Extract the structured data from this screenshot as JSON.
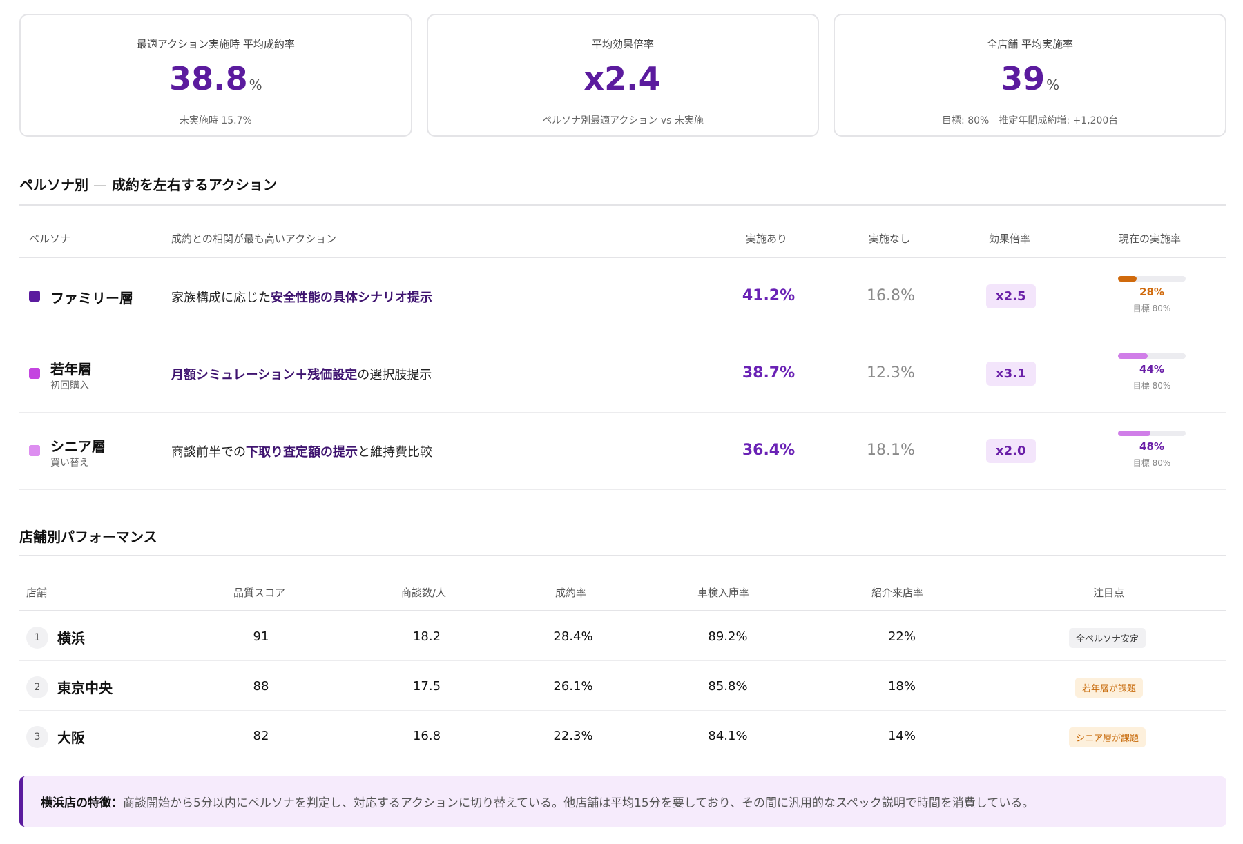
{
  "kpis": [
    {
      "label": "最適アクション実施時 平均成約率",
      "value": "38.8",
      "unit": "%",
      "sub": "未実施時 15.7%"
    },
    {
      "label": "平均効果倍率",
      "value": "x2.4",
      "unit": "",
      "sub": "ペルソナ別最適アクション vs 未実施"
    },
    {
      "label": "全店舗 平均実施率",
      "value": "39",
      "unit": "%",
      "sub": "目標: 80%　推定年間成約増: +1,200台"
    }
  ],
  "persona_section": {
    "title": "ペルソナ別",
    "dash": "—",
    "title2": "成約を左右するアクション",
    "headers": {
      "persona": "ペルソナ",
      "action": "成約との相関が最も高いアクション",
      "with": "実施あり",
      "without": "実施なし",
      "multiplier": "効果倍率",
      "rate": "現在の実施率"
    },
    "rows": [
      {
        "name": "ファミリー層",
        "sub": "",
        "action_pre": "家族構成に応じた",
        "action_bold": "安全性能の具体シナリオ提示",
        "action_post": "",
        "with": "41.2%",
        "without": "16.8%",
        "multiplier": "x2.5",
        "rate": "28%",
        "rate_value": 28,
        "target": "目標 80%",
        "swatch": "#5b1b9e",
        "bar_color": "#d06a0c",
        "rate_color": "#d06a0c"
      },
      {
        "name": "若年層",
        "sub": "初回購入",
        "action_pre": "",
        "action_bold": "月額シミュレーション＋残価設定",
        "action_post": "の選択肢提示",
        "with": "38.7%",
        "without": "12.3%",
        "multiplier": "x3.1",
        "rate": "44%",
        "rate_value": 44,
        "target": "目標 80%",
        "swatch": "#c445e0",
        "bar_color": "#d07ee8",
        "rate_color": "#6a1fa8"
      },
      {
        "name": "シニア層",
        "sub": "買い替え",
        "action_pre": "商談前半での",
        "action_bold": "下取り査定額の提示",
        "action_post": "と維持費比較",
        "with": "36.4%",
        "without": "18.1%",
        "multiplier": "x2.0",
        "rate": "48%",
        "rate_value": 48,
        "target": "目標 80%",
        "swatch": "#dd8ef0",
        "bar_color": "#d07ee8",
        "rate_color": "#6a1fa8"
      }
    ]
  },
  "store_section": {
    "title": "店舗別パフォーマンス",
    "headers": {
      "store": "店舗",
      "quality": "品質スコア",
      "deals": "商談数/人",
      "conv": "成約率",
      "inspection": "車検入庫率",
      "referral": "紹介来店率",
      "focus": "注目点"
    },
    "rows": [
      {
        "rank": "1",
        "name": "横浜",
        "quality": "91",
        "deals": "18.2",
        "conv": "28.4%",
        "inspection": "89.2%",
        "referral": "22%",
        "focus": "全ペルソナ安定",
        "focus_bg": "#f1f1f3",
        "focus_color": "#444"
      },
      {
        "rank": "2",
        "name": "東京中央",
        "quality": "88",
        "deals": "17.5",
        "conv": "26.1%",
        "inspection": "85.8%",
        "referral": "18%",
        "focus": "若年層が課題",
        "focus_bg": "#fdf0dc",
        "focus_color": "#c86a0a"
      },
      {
        "rank": "3",
        "name": "大阪",
        "quality": "82",
        "deals": "16.8",
        "conv": "22.3%",
        "inspection": "84.1%",
        "referral": "14%",
        "focus": "シニア層が課題",
        "focus_bg": "#fdf0dc",
        "focus_color": "#c86a0a"
      }
    ]
  },
  "note": {
    "label": "横浜店の特徴：",
    "text": "商談開始から5分以内にペルソナを判定し、対応するアクションに切り替えている。他店舗は平均15分を要しており、その間に汎用的なスペック説明で時間を消費している。"
  },
  "colors": {
    "accent": "#5b1b9e",
    "warning": "#d06a0c"
  }
}
